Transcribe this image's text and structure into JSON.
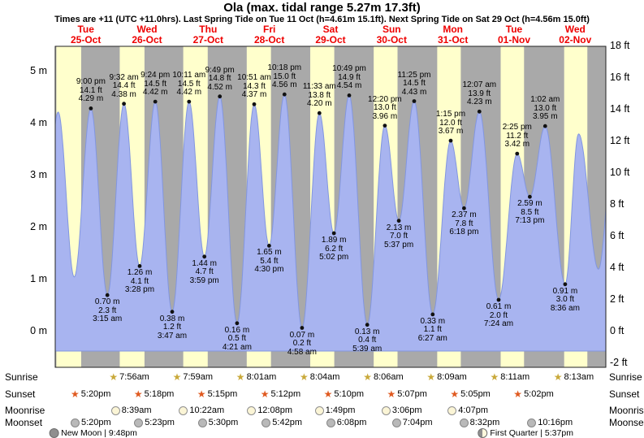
{
  "title": "Ola (max. tidal range 5.27m 17.3ft)",
  "subtitle": "Times are +11 (UTC +11.0hrs). Last Spring Tide on Tue 11 Oct (h=4.61m 15.1ft). Next Spring Tide on Sat 29 Oct (h=4.56m 15.0ft)",
  "days": [
    {
      "name": "Tue",
      "date": "25-Oct"
    },
    {
      "name": "Wed",
      "date": "26-Oct"
    },
    {
      "name": "Thu",
      "date": "27-Oct"
    },
    {
      "name": "Fri",
      "date": "28-Oct"
    },
    {
      "name": "Sat",
      "date": "29-Oct"
    },
    {
      "name": "Sun",
      "date": "30-Oct"
    },
    {
      "name": "Mon",
      "date": "31-Oct"
    },
    {
      "name": "Tue",
      "date": "01-Nov"
    },
    {
      "name": "Wed",
      "date": "02-Nov"
    }
  ],
  "y_axis_left": {
    "ticks": [
      {
        "label": "5 m",
        "m": 5
      },
      {
        "label": "4 m",
        "m": 4
      },
      {
        "label": "3 m",
        "m": 3
      },
      {
        "label": "2 m",
        "m": 2
      },
      {
        "label": "1 m",
        "m": 1
      },
      {
        "label": "0 m",
        "m": 0
      }
    ]
  },
  "y_axis_right": {
    "ticks": [
      {
        "label": "18 ft",
        "ft": 18
      },
      {
        "label": "16 ft",
        "ft": 16
      },
      {
        "label": "14 ft",
        "ft": 14
      },
      {
        "label": "12 ft",
        "ft": 12
      },
      {
        "label": "10 ft",
        "ft": 10
      },
      {
        "label": "8 ft",
        "ft": 8
      },
      {
        "label": "6 ft",
        "ft": 6
      },
      {
        "label": "4 ft",
        "ft": 4
      },
      {
        "label": "2 ft",
        "ft": 2
      },
      {
        "label": "0 ft",
        "ft": 0
      },
      {
        "label": "-2 ft",
        "ft": -2
      }
    ]
  },
  "chart_data": {
    "type": "area",
    "title": "Ola (max. tidal range 5.27m 17.3ft)",
    "x_axis": "hours since Tue 25-Oct 00:00 (+11), window Tue 25-Oct 07:30 to Wed 02-Nov 24:00",
    "ylim_m": [
      -0.6,
      5.5
    ],
    "units": {
      "m": "m",
      "ft": "ft"
    },
    "colors": {
      "day_band": "#ffffcc",
      "night_band": "#a9a9a9",
      "water": "#a8b4f0",
      "water_edge": "#8296e0",
      "marker": "#111111",
      "day_label": "#ee0000",
      "border": "#222222"
    },
    "tides": [
      {
        "type": "high",
        "day": 0,
        "time": "9:00 pm",
        "m": "4.29",
        "ft": "14.1",
        "t": 21.0
      },
      {
        "type": "low",
        "day": 1,
        "time": "3:15 am",
        "m": "0.70",
        "ft": "2.3",
        "t": 27.25
      },
      {
        "type": "high",
        "day": 1,
        "time": "9:32 am",
        "m": "4.38",
        "ft": "14.4",
        "t": 33.53
      },
      {
        "type": "low",
        "day": 1,
        "time": "3:28 pm",
        "m": "1.26",
        "ft": "4.1",
        "t": 39.47
      },
      {
        "type": "high",
        "day": 1,
        "time": "9:24 pm",
        "m": "4.42",
        "ft": "14.5",
        "t": 45.4
      },
      {
        "type": "low",
        "day": 2,
        "time": "3:47 am",
        "m": "0.38",
        "ft": "1.2",
        "t": 51.78
      },
      {
        "type": "high",
        "day": 2,
        "time": "10:11 am",
        "m": "4.42",
        "ft": "14.5",
        "t": 58.18
      },
      {
        "type": "low",
        "day": 2,
        "time": "3:59 pm",
        "m": "1.44",
        "ft": "4.7",
        "t": 63.98
      },
      {
        "type": "high",
        "day": 2,
        "time": "9:49 pm",
        "m": "4.52",
        "ft": "14.8",
        "t": 69.82
      },
      {
        "type": "low",
        "day": 3,
        "time": "4:21 am",
        "m": "0.16",
        "ft": "0.5",
        "t": 76.35
      },
      {
        "type": "high",
        "day": 3,
        "time": "10:51 am",
        "m": "4.37",
        "ft": "14.3",
        "t": 82.85
      },
      {
        "type": "low",
        "day": 3,
        "time": "4:30 pm",
        "m": "1.65",
        "ft": "5.4",
        "t": 88.5
      },
      {
        "type": "high",
        "day": 3,
        "time": "10:18 pm",
        "m": "4.56",
        "ft": "15.0",
        "t": 94.3
      },
      {
        "type": "low",
        "day": 4,
        "time": "4:58 am",
        "m": "0.07",
        "ft": "0.2",
        "t": 100.97
      },
      {
        "type": "high",
        "day": 4,
        "time": "11:33 am",
        "m": "4.20",
        "ft": "13.8",
        "t": 107.55
      },
      {
        "type": "low",
        "day": 4,
        "time": "5:02 pm",
        "m": "1.89",
        "ft": "6.2",
        "t": 113.03
      },
      {
        "type": "high",
        "day": 4,
        "time": "10:49 pm",
        "m": "4.54",
        "ft": "14.9",
        "t": 118.82
      },
      {
        "type": "low",
        "day": 5,
        "time": "5:39 am",
        "m": "0.13",
        "ft": "0.4",
        "t": 125.65
      },
      {
        "type": "high",
        "day": 5,
        "time": "12:20 pm",
        "m": "3.96",
        "ft": "13.0",
        "t": 132.33
      },
      {
        "type": "low",
        "day": 5,
        "time": "5:37 pm",
        "m": "2.13",
        "ft": "7.0",
        "t": 137.62
      },
      {
        "type": "high",
        "day": 5,
        "time": "11:25 pm",
        "m": "4.43",
        "ft": "14.5",
        "t": 143.42
      },
      {
        "type": "low",
        "day": 6,
        "time": "6:27 am",
        "m": "0.33",
        "ft": "1.1",
        "t": 150.45
      },
      {
        "type": "high",
        "day": 6,
        "time": "1:15 pm",
        "m": "3.67",
        "ft": "12.0",
        "t": 157.25
      },
      {
        "type": "low",
        "day": 6,
        "time": "6:18 pm",
        "m": "2.37",
        "ft": "7.8",
        "t": 162.3
      },
      {
        "type": "high",
        "day": 7,
        "time": "12:07 am",
        "m": "4.23",
        "ft": "13.9",
        "t": 168.12
      },
      {
        "type": "low",
        "day": 7,
        "time": "7:24 am",
        "m": "0.61",
        "ft": "2.0",
        "t": 175.4
      },
      {
        "type": "high",
        "day": 7,
        "time": "2:25 pm",
        "m": "3.42",
        "ft": "11.2",
        "t": 182.42
      },
      {
        "type": "low",
        "day": 7,
        "time": "7:13 pm",
        "m": "2.59",
        "ft": "8.5",
        "t": 187.22
      },
      {
        "type": "high",
        "day": 8,
        "time": "1:02 am",
        "m": "3.95",
        "ft": "13.0",
        "t": 193.03
      },
      {
        "type": "low",
        "day": 8,
        "time": "8:36 am",
        "m": "0.91",
        "ft": "3.0",
        "t": 200.6
      }
    ],
    "shape_points_before": [
      {
        "t": 2.2,
        "m": 0.85
      },
      {
        "t": 8.6,
        "m": 4.22
      },
      {
        "t": 14.7,
        "m": 1.05
      }
    ],
    "shape_points_after": [
      {
        "t": 205.7,
        "m": 3.8
      },
      {
        "t": 213.2,
        "m": 1.2
      },
      {
        "t": 219.5,
        "m": 4.0
      }
    ],
    "daylight_hours": [
      [
        7.93,
        17.33
      ],
      [
        31.93,
        41.3
      ],
      [
        55.98,
        65.25
      ],
      [
        80.02,
        89.2
      ],
      [
        104.07,
        113.17
      ],
      [
        128.1,
        137.12
      ],
      [
        152.15,
        161.08
      ],
      [
        176.18,
        185.03
      ],
      [
        200.22,
        209.0
      ]
    ]
  },
  "almanac": {
    "rows": [
      {
        "name": "sunrise",
        "label": "Sunrise",
        "icon": "star",
        "icon_color": "#c9a93a",
        "entries": [
          {
            "time": "7:56am",
            "t": 31.93
          },
          {
            "time": "7:59am",
            "t": 55.98
          },
          {
            "time": "8:01am",
            "t": 80.02
          },
          {
            "time": "8:04am",
            "t": 104.07
          },
          {
            "time": "8:06am",
            "t": 128.1
          },
          {
            "time": "8:09am",
            "t": 152.15
          },
          {
            "time": "8:11am",
            "t": 176.18
          },
          {
            "time": "8:13am",
            "t": 200.22
          }
        ]
      },
      {
        "name": "sunset",
        "label": "Sunset",
        "icon": "star",
        "icon_color": "#e05a20",
        "entries": [
          {
            "time": "5:20pm",
            "t": 17.33
          },
          {
            "time": "5:18pm",
            "t": 41.3
          },
          {
            "time": "5:15pm",
            "t": 65.25
          },
          {
            "time": "5:12pm",
            "t": 89.2
          },
          {
            "time": "5:10pm",
            "t": 113.17
          },
          {
            "time": "5:07pm",
            "t": 137.12
          },
          {
            "time": "5:05pm",
            "t": 161.08
          },
          {
            "time": "5:02pm",
            "t": 185.03
          }
        ]
      },
      {
        "name": "moonrise",
        "label": "Moonrise",
        "icon": "moon",
        "icon_fill": "#fbf5d6",
        "icon_border": "#8f8f8f",
        "entries": [
          {
            "time": "8:39am",
            "t": 32.65
          },
          {
            "time": "10:22am",
            "t": 58.37
          },
          {
            "time": "12:08pm",
            "t": 84.13
          },
          {
            "time": "1:49pm",
            "t": 109.82
          },
          {
            "time": "3:06pm",
            "t": 135.1
          },
          {
            "time": "4:07pm",
            "t": 160.12
          }
        ]
      },
      {
        "name": "moonset",
        "label": "Moonset",
        "icon": "moon",
        "icon_fill": "#b9b9b9",
        "icon_border": "#878787",
        "entries": [
          {
            "time": "5:20pm",
            "t": 17.33
          },
          {
            "time": "5:23pm",
            "t": 41.38
          },
          {
            "time": "5:30pm",
            "t": 65.5
          },
          {
            "time": "5:42pm",
            "t": 89.7
          },
          {
            "time": "6:08pm",
            "t": 114.13
          },
          {
            "time": "7:04pm",
            "t": 139.07
          },
          {
            "time": "8:32pm",
            "t": 164.53
          },
          {
            "time": "10:16pm",
            "t": 190.27
          }
        ]
      }
    ],
    "phases": [
      {
        "name": "new-moon",
        "label": "New Moon | 9:48pm",
        "t": 21.8
      },
      {
        "name": "first-quarter",
        "label": "First Quarter | 5:37pm",
        "t": 185.62
      }
    ]
  }
}
